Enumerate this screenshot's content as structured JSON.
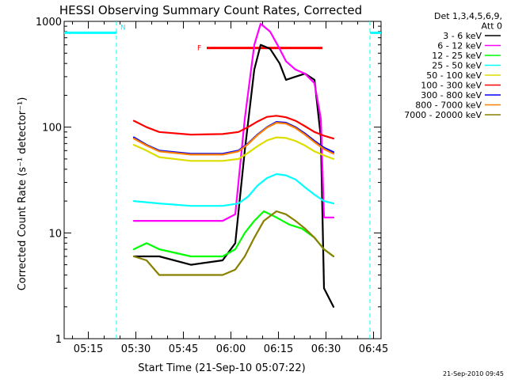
{
  "chart_data": {
    "type": "line",
    "title": "HESSI Observing Summary Count Rates, Corrected",
    "xlabel": "Start Time (21-Sep-10 05:07:22)",
    "ylabel": "Corrected Count Rate (s⁻¹ detector⁻¹)",
    "yscale": "log",
    "ylim": [
      1,
      1000
    ],
    "xlim_minutes": [
      0,
      100
    ],
    "xticks": [
      {
        "minute": 7.633,
        "label": "05:15"
      },
      {
        "minute": 22.633,
        "label": "05:30"
      },
      {
        "minute": 37.633,
        "label": "05:45"
      },
      {
        "minute": 52.633,
        "label": "06:00"
      },
      {
        "minute": 67.633,
        "label": "06:15"
      },
      {
        "minute": 82.633,
        "label": "06:30"
      },
      {
        "minute": 97.633,
        "label": "06:45"
      }
    ],
    "yticks": [
      {
        "value": 1,
        "label": "1"
      },
      {
        "value": 10,
        "label": "10"
      },
      {
        "value": 100,
        "label": "100"
      },
      {
        "value": 1000,
        "label": "1000"
      }
    ],
    "legend_header": [
      "Det 1,3,4,5,6,9,",
      "Att 0"
    ],
    "legend_position": "right",
    "grid": false,
    "series": [
      {
        "name": "3 - 6 keV",
        "color": "#000000",
        "points": [
          [
            22,
            6
          ],
          [
            26,
            6
          ],
          [
            30,
            6
          ],
          [
            40,
            5
          ],
          [
            50,
            5.5
          ],
          [
            54,
            8
          ],
          [
            57,
            60
          ],
          [
            60,
            350
          ],
          [
            62,
            600
          ],
          [
            65,
            550
          ],
          [
            68,
            400
          ],
          [
            70,
            280
          ],
          [
            73,
            300
          ],
          [
            76,
            320
          ],
          [
            79,
            280
          ],
          [
            81,
            80
          ],
          [
            82,
            3
          ],
          [
            85,
            2
          ]
        ]
      },
      {
        "name": "6 - 12 keV",
        "color": "#ff00ff",
        "points": [
          [
            22,
            13
          ],
          [
            30,
            13
          ],
          [
            40,
            13
          ],
          [
            50,
            13
          ],
          [
            54,
            15
          ],
          [
            57,
            120
          ],
          [
            60,
            600
          ],
          [
            62,
            950
          ],
          [
            65,
            800
          ],
          [
            68,
            550
          ],
          [
            70,
            420
          ],
          [
            73,
            350
          ],
          [
            76,
            320
          ],
          [
            79,
            260
          ],
          [
            81,
            120
          ],
          [
            82,
            14
          ],
          [
            85,
            14
          ]
        ]
      },
      {
        "name": "12 - 25 keV",
        "color": "#00ff00",
        "points": [
          [
            22,
            7
          ],
          [
            26,
            8
          ],
          [
            30,
            7
          ],
          [
            40,
            6
          ],
          [
            50,
            6
          ],
          [
            54,
            7
          ],
          [
            57,
            10
          ],
          [
            60,
            13
          ],
          [
            63,
            16
          ],
          [
            67,
            14
          ],
          [
            71,
            12
          ],
          [
            75,
            11
          ],
          [
            79,
            9
          ],
          [
            82,
            7
          ],
          [
            85,
            6
          ]
        ]
      },
      {
        "name": "25 - 50 keV",
        "color": "#00ffff",
        "points": [
          [
            22,
            20
          ],
          [
            30,
            19
          ],
          [
            40,
            18
          ],
          [
            50,
            18
          ],
          [
            55,
            19
          ],
          [
            58,
            22
          ],
          [
            61,
            28
          ],
          [
            64,
            33
          ],
          [
            67,
            36
          ],
          [
            70,
            35
          ],
          [
            73,
            32
          ],
          [
            76,
            27
          ],
          [
            79,
            23
          ],
          [
            82,
            20
          ],
          [
            85,
            19
          ]
        ]
      },
      {
        "name": "50 - 100 keV",
        "color": "#dddd00",
        "points": [
          [
            22,
            68
          ],
          [
            26,
            60
          ],
          [
            30,
            52
          ],
          [
            40,
            48
          ],
          [
            50,
            48
          ],
          [
            55,
            50
          ],
          [
            58,
            57
          ],
          [
            61,
            66
          ],
          [
            64,
            75
          ],
          [
            67,
            80
          ],
          [
            70,
            79
          ],
          [
            73,
            74
          ],
          [
            76,
            67
          ],
          [
            79,
            59
          ],
          [
            82,
            54
          ],
          [
            85,
            50
          ]
        ]
      },
      {
        "name": "100 - 300 keV",
        "color": "#ff0000",
        "points": [
          [
            22,
            115
          ],
          [
            26,
            100
          ],
          [
            30,
            90
          ],
          [
            40,
            85
          ],
          [
            50,
            86
          ],
          [
            55,
            90
          ],
          [
            58,
            100
          ],
          [
            61,
            113
          ],
          [
            64,
            125
          ],
          [
            67,
            128
          ],
          [
            70,
            124
          ],
          [
            73,
            115
          ],
          [
            76,
            102
          ],
          [
            79,
            90
          ],
          [
            82,
            83
          ],
          [
            85,
            78
          ]
        ]
      },
      {
        "name": "300 - 800 keV",
        "color": "#0000ff",
        "points": [
          [
            22,
            80
          ],
          [
            26,
            68
          ],
          [
            30,
            60
          ],
          [
            40,
            56
          ],
          [
            50,
            56
          ],
          [
            55,
            60
          ],
          [
            58,
            70
          ],
          [
            61,
            85
          ],
          [
            64,
            100
          ],
          [
            67,
            112
          ],
          [
            70,
            110
          ],
          [
            73,
            100
          ],
          [
            76,
            87
          ],
          [
            79,
            74
          ],
          [
            82,
            64
          ],
          [
            85,
            58
          ]
        ]
      },
      {
        "name": "800 - 7000 keV",
        "color": "#ff8000",
        "points": [
          [
            22,
            78
          ],
          [
            26,
            67
          ],
          [
            30,
            59
          ],
          [
            40,
            55
          ],
          [
            50,
            55
          ],
          [
            55,
            59
          ],
          [
            58,
            69
          ],
          [
            61,
            84
          ],
          [
            64,
            99
          ],
          [
            67,
            110
          ],
          [
            70,
            108
          ],
          [
            73,
            98
          ],
          [
            76,
            85
          ],
          [
            79,
            72
          ],
          [
            82,
            62
          ],
          [
            85,
            56
          ]
        ]
      },
      {
        "name": "7000 - 20000 keV",
        "color": "#888000",
        "points": [
          [
            22,
            6
          ],
          [
            26,
            5.5
          ],
          [
            30,
            4
          ],
          [
            40,
            4
          ],
          [
            50,
            4
          ],
          [
            54,
            4.5
          ],
          [
            57,
            6
          ],
          [
            60,
            9
          ],
          [
            63,
            13
          ],
          [
            67,
            16
          ],
          [
            70,
            15
          ],
          [
            73,
            13
          ],
          [
            76,
            11
          ],
          [
            79,
            9
          ],
          [
            82,
            7
          ],
          [
            85,
            6
          ]
        ]
      }
    ],
    "annotations": [
      {
        "label": "N",
        "color": "#00ffff",
        "x_range": [
          0,
          16.5
        ],
        "y": 780,
        "dashed_at": [
          16.5,
          96.5
        ]
      },
      {
        "label": "F",
        "color": "#ff0000",
        "x_range": [
          45,
          81.5
        ],
        "y": 560
      }
    ]
  },
  "footer": {
    "timestamp": "21-Sep-2010 09:45"
  }
}
